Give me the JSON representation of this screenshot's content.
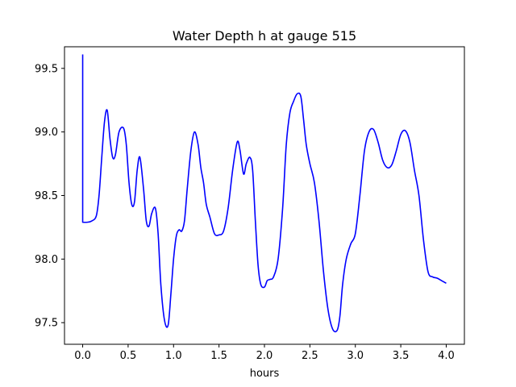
{
  "chart_data": {
    "type": "line",
    "title": "Water Depth h at gauge 515",
    "xlabel": "hours",
    "ylabel": "",
    "xlim": [
      -0.2,
      4.2
    ],
    "ylim": [
      97.33,
      99.67
    ],
    "xticks": [
      0.0,
      0.5,
      1.0,
      1.5,
      2.0,
      2.5,
      3.0,
      3.5,
      4.0
    ],
    "xtick_labels": [
      "0.0",
      "0.5",
      "1.0",
      "1.5",
      "2.0",
      "2.5",
      "3.0",
      "3.5",
      "4.0"
    ],
    "yticks": [
      97.5,
      98.0,
      98.5,
      99.0,
      99.5
    ],
    "ytick_labels": [
      "97.5",
      "98.0",
      "98.5",
      "99.0",
      "99.5"
    ],
    "grid": false,
    "legend": "none",
    "series": [
      {
        "color": "#0000ff",
        "x": [
          0.0,
          0.0,
          0.0,
          0.05,
          0.1,
          0.15,
          0.18,
          0.21,
          0.24,
          0.27,
          0.3,
          0.33,
          0.36,
          0.4,
          0.45,
          0.48,
          0.51,
          0.54,
          0.57,
          0.6,
          0.63,
          0.67,
          0.7,
          0.73,
          0.76,
          0.8,
          0.83,
          0.86,
          0.9,
          0.94,
          0.97,
          1.0,
          1.03,
          1.06,
          1.09,
          1.12,
          1.15,
          1.19,
          1.23,
          1.27,
          1.3,
          1.33,
          1.36,
          1.4,
          1.45,
          1.5,
          1.55,
          1.6,
          1.65,
          1.7,
          1.73,
          1.77,
          1.8,
          1.84,
          1.87,
          1.9,
          1.93,
          1.96,
          2.0,
          2.03,
          2.06,
          2.1,
          2.15,
          2.2,
          2.24,
          2.28,
          2.32,
          2.36,
          2.4,
          2.43,
          2.46,
          2.5,
          2.55,
          2.6,
          2.65,
          2.7,
          2.75,
          2.8,
          2.83,
          2.86,
          2.9,
          2.95,
          3.0,
          3.05,
          3.1,
          3.15,
          3.2,
          3.25,
          3.3,
          3.35,
          3.4,
          3.45,
          3.5,
          3.55,
          3.6,
          3.65,
          3.7,
          3.75,
          3.8,
          3.85,
          3.9,
          3.95,
          4.0
        ],
        "y": [
          99.61,
          99.5,
          98.29,
          98.29,
          98.3,
          98.34,
          98.5,
          98.8,
          99.08,
          99.17,
          98.95,
          98.8,
          98.82,
          99.0,
          99.03,
          98.9,
          98.6,
          98.43,
          98.45,
          98.7,
          98.8,
          98.55,
          98.3,
          98.26,
          98.36,
          98.4,
          98.2,
          97.8,
          97.52,
          97.48,
          97.72,
          98.0,
          98.18,
          98.23,
          98.22,
          98.3,
          98.55,
          98.85,
          99.0,
          98.9,
          98.72,
          98.6,
          98.43,
          98.33,
          98.2,
          98.19,
          98.22,
          98.4,
          98.7,
          98.92,
          98.86,
          98.67,
          98.75,
          98.8,
          98.7,
          98.3,
          97.95,
          97.8,
          97.78,
          97.83,
          97.84,
          97.86,
          98.0,
          98.4,
          98.9,
          99.15,
          99.24,
          99.3,
          99.28,
          99.1,
          98.9,
          98.75,
          98.6,
          98.3,
          97.9,
          97.6,
          97.45,
          97.44,
          97.55,
          97.8,
          98.0,
          98.12,
          98.2,
          98.5,
          98.85,
          99.0,
          99.02,
          98.92,
          98.78,
          98.72,
          98.74,
          98.85,
          98.98,
          99.01,
          98.92,
          98.7,
          98.5,
          98.15,
          97.9,
          97.86,
          97.85,
          97.83,
          97.81
        ]
      }
    ]
  }
}
